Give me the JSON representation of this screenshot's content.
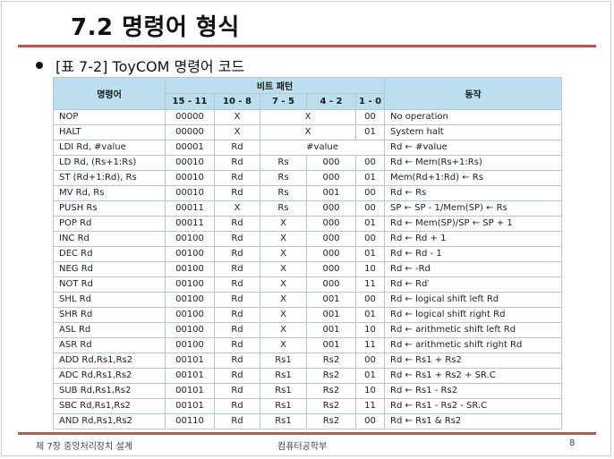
{
  "slide": {
    "title": "7.2 명령어 형식",
    "bullet": "[표 7-2] ToyCOM 명령어 코드"
  },
  "table": {
    "header": {
      "instr": "명령어",
      "bitpattern": "비트 패턴",
      "action": "동작",
      "bits": [
        "15 - 11",
        "10 - 8",
        "7 - 5",
        "4 - 2",
        "1 - 0"
      ]
    },
    "rows": [
      {
        "name": "NOP",
        "b1511": "00000",
        "b108": "X",
        "b75": "X",
        "b42": "",
        "b10": "00",
        "action": "No operation",
        "span": "b75-b42"
      },
      {
        "name": "HALT",
        "b1511": "00000",
        "b108": "X",
        "b75": "X",
        "b42": "",
        "b10": "01",
        "action": "System halt",
        "span": "b75-b42"
      },
      {
        "name": "LDI Rd, #value",
        "b1511": "00001",
        "b108": "Rd",
        "b75": "#value",
        "b42": "",
        "b10": "",
        "action": "Rd ← #value",
        "span": "b75-b10"
      },
      {
        "name": "LD Rd, (Rs+1:Rs)",
        "b1511": "00010",
        "b108": "Rd",
        "b75": "Rs",
        "b42": "000",
        "b10": "00",
        "action": "Rd ← Mem(Rs+1:Rs)"
      },
      {
        "name": "ST (Rd+1:Rd), Rs",
        "b1511": "00010",
        "b108": "Rd",
        "b75": "Rs",
        "b42": "000",
        "b10": "01",
        "action": "Mem(Rd+1:Rd) ← Rs"
      },
      {
        "name": "MV Rd, Rs",
        "b1511": "00010",
        "b108": "Rd",
        "b75": "Rs",
        "b42": "001",
        "b10": "00",
        "action": "Rd ← Rs"
      },
      {
        "name": "PUSH Rs",
        "b1511": "00011",
        "b108": "X",
        "b75": "Rs",
        "b42": "000",
        "b10": "00",
        "action": "SP ← SP - 1/Mem(SP) ← Rs"
      },
      {
        "name": "POP Rd",
        "b1511": "00011",
        "b108": "Rd",
        "b75": "X",
        "b42": "000",
        "b10": "01",
        "action": "Rd ← Mem(SP)/SP ← SP + 1"
      },
      {
        "name": "INC Rd",
        "b1511": "00100",
        "b108": "Rd",
        "b75": "X",
        "b42": "000",
        "b10": "00",
        "action": "Rd ← Rd + 1"
      },
      {
        "name": "DEC Rd",
        "b1511": "00100",
        "b108": "Rd",
        "b75": "X",
        "b42": "000",
        "b10": "01",
        "action": "Rd ← Rd - 1"
      },
      {
        "name": "NEG Rd",
        "b1511": "00100",
        "b108": "Rd",
        "b75": "X",
        "b42": "000",
        "b10": "10",
        "action": "Rd ← -Rd"
      },
      {
        "name": "NOT Rd",
        "b1511": "00100",
        "b108": "Rd",
        "b75": "X",
        "b42": "000",
        "b10": "11",
        "action": "Rd ← Rd′"
      },
      {
        "name": "SHL Rd",
        "b1511": "00100",
        "b108": "Rd",
        "b75": "X",
        "b42": "001",
        "b10": "00",
        "action": "Rd ← logical shift left Rd"
      },
      {
        "name": "SHR Rd",
        "b1511": "00100",
        "b108": "Rd",
        "b75": "X",
        "b42": "001",
        "b10": "01",
        "action": "Rd ← logical shift right Rd"
      },
      {
        "name": "ASL Rd",
        "b1511": "00100",
        "b108": "Rd",
        "b75": "X",
        "b42": "001",
        "b10": "10",
        "action": "Rd ← arithmetic shift left Rd"
      },
      {
        "name": "ASR Rd",
        "b1511": "00100",
        "b108": "Rd",
        "b75": "X",
        "b42": "001",
        "b10": "11",
        "action": "Rd ← arithmetic shift right Rd"
      },
      {
        "name": "ADD Rd,Rs1,Rs2",
        "b1511": "00101",
        "b108": "Rd",
        "b75": "Rs1",
        "b42": "Rs2",
        "b10": "00",
        "action": "Rd ← Rs1 + Rs2"
      },
      {
        "name": "ADC Rd,Rs1,Rs2",
        "b1511": "00101",
        "b108": "Rd",
        "b75": "Rs1",
        "b42": "Rs2",
        "b10": "01",
        "action": "Rd ← Rs1 + Rs2 + SR.C"
      },
      {
        "name": "SUB Rd,Rs1,Rs2",
        "b1511": "00101",
        "b108": "Rd",
        "b75": "Rs1",
        "b42": "Rs2",
        "b10": "10",
        "action": "Rd ← Rs1 - Rs2"
      },
      {
        "name": "SBC Rd,Rs1,Rs2",
        "b1511": "00101",
        "b108": "Rd",
        "b75": "Rs1",
        "b42": "Rs2",
        "b10": "11",
        "action": "Rd ← Rs1 - Rs2 - SR.C"
      },
      {
        "name": "AND Rd,Rs1,Rs2",
        "b1511": "00110",
        "b108": "Rd",
        "b75": "Rs1",
        "b42": "Rs2",
        "b10": "00",
        "action": "Rd ← Rs1 & Rs2"
      }
    ]
  },
  "footer": {
    "left": "제 7장 중앙처리장치 설계",
    "center": "컴퓨터공학부",
    "page": "8"
  },
  "colors": {
    "rule": "#b45a4e",
    "header_bg": "#bcdfef",
    "grid": "#b8c6cf"
  }
}
